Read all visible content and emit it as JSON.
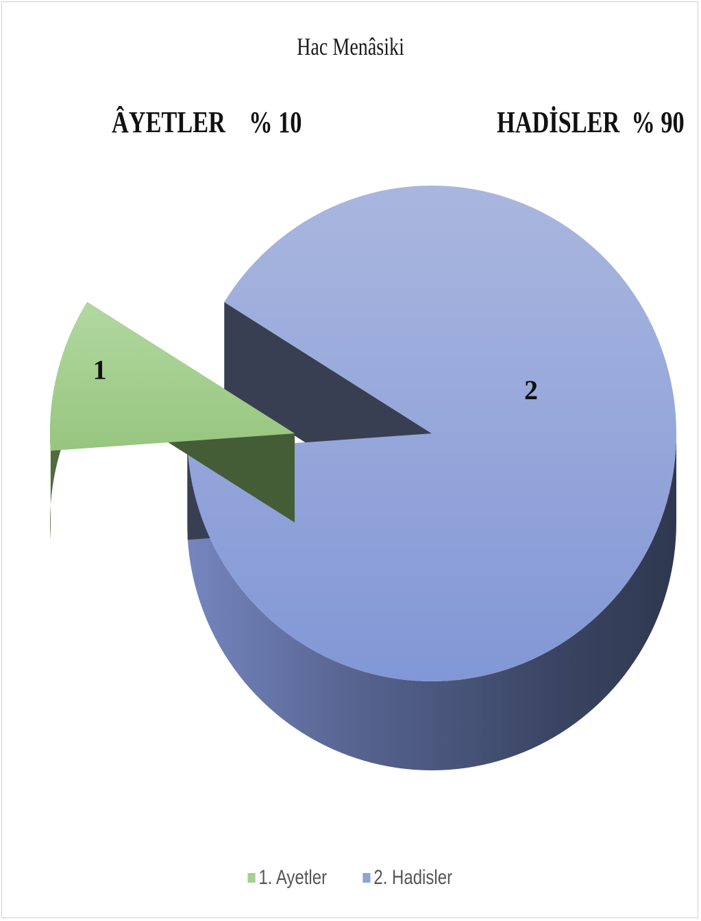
{
  "chart_data": {
    "type": "pie",
    "title": "Hac Menâsiki",
    "categories": [
      "1. Ayetler",
      "2. Hadisler"
    ],
    "values": [
      10,
      90
    ],
    "data_labels": [
      "1",
      "2"
    ],
    "annotations": [
      {
        "name": "ÂYETLER",
        "value": "% 10"
      },
      {
        "name": "HADİSLER",
        "value": "% 90"
      }
    ],
    "colors": {
      "ayetler_top": "#a6cf8f",
      "ayetler_side": "#455d37",
      "hadisler_top": "#8fa3d8",
      "hadisler_side": "#3e4a6c",
      "hadisler_inner": "#383f52"
    },
    "legend_position": "bottom",
    "style": "3d-exploded"
  }
}
